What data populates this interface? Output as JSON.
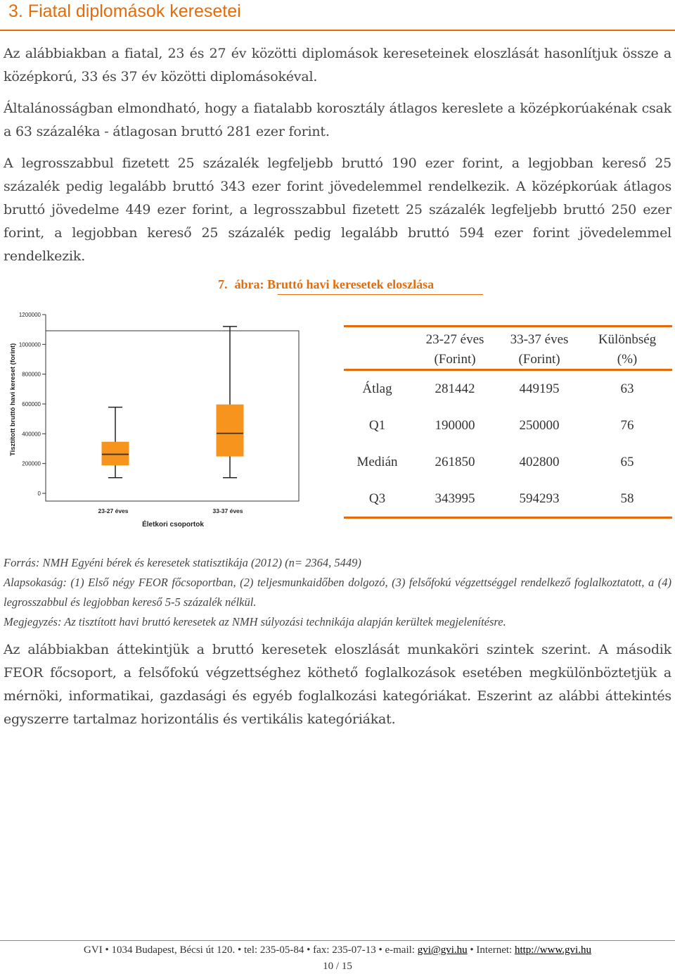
{
  "heading": "3. Fiatal diplomások keresetei",
  "paragraphs": {
    "p1": "Az alábbiakban a fiatal, 23 és 27 év közötti diplomások kereseteinek eloszlását hasonlítjuk össze a középkorú, 33 és 37 év közötti diplomásokéval.",
    "p2": "Általánosságban elmondható, hogy a fiatalabb korosztály átlagos kereslete a középkorúakénak csak a 63 százaléka - átlagosan bruttó 281 ezer forint.",
    "p3": "A legrosszabbul fizetett 25 százalék legfeljebb bruttó 190 ezer forint, a legjobban kereső 25 százalék pedig legalább bruttó 343 ezer forint jövedelemmel rendelkezik. A középkorúak átlagos bruttó jövedelme 449 ezer forint, a legrosszabbul fizetett 25 százalék legfeljebb bruttó 250 ezer forint, a legjobban kereső 25 százalék pedig legalább bruttó 594 ezer forint jövedelemmel rendelkezik.",
    "p4": "Az alábbiakban áttekintjük a bruttó keresetek eloszlását munkaköri szintek szerint. A második FEOR főcsoport, a felsőfokú végzettséghez köthető foglalkozások esetében megkülönböztetjük a mérnöki, informatikai, gazdasági és egyéb foglalkozási kategóriákat. Eszerint az alábbi áttekintés egyszerre tartalmaz horizontális és vertikális kategóriákat."
  },
  "figure": {
    "number": "7.",
    "title": "ábra: Bruttó havi keresetek eloszlása"
  },
  "chart_data": {
    "type": "box",
    "ylabel": "Tisztított bruttó havi kereset (forint)",
    "xlabel": "Életkori csoportok",
    "ylim": [
      0,
      1200000
    ],
    "yticks": [
      "0",
      "200000",
      "400000",
      "600000",
      "800000",
      "1000000",
      "1200000"
    ],
    "ytick_values": [
      0,
      200000,
      400000,
      600000,
      800000,
      1000000,
      1200000
    ],
    "categories": [
      "23-27 éves",
      "33-37 éves"
    ],
    "boxes": [
      {
        "category": "23-27 éves",
        "whisker_low": 105000,
        "q1": 190000,
        "median": 261850,
        "q3": 343995,
        "whisker_high": 578000
      },
      {
        "category": "33-37 éves",
        "whisker_low": 105000,
        "q1": 250000,
        "median": 402800,
        "q3": 594293,
        "whisker_high": 1120000
      }
    ],
    "box_color": "#f7941d",
    "median_color": "#333333"
  },
  "table": {
    "headers": [
      {
        "line1": "",
        "line2": ""
      },
      {
        "line1": "23-27 éves",
        "line2": "(Forint)"
      },
      {
        "line1": "33-37 éves",
        "line2": "(Forint)"
      },
      {
        "line1": "Különbség",
        "line2": "(%)"
      }
    ],
    "rows": [
      [
        "Átlag",
        "281442",
        "449195",
        "63"
      ],
      [
        "Q1",
        "190000",
        "250000",
        "76"
      ],
      [
        "Medián",
        "261850",
        "402800",
        "65"
      ],
      [
        "Q3",
        "343995",
        "594293",
        "58"
      ]
    ]
  },
  "source": {
    "forras": "Forrás: NMH Egyéni bérek és keresetek statisztikája (2012) (n= 2364, 5449)",
    "alapsokasag": "Alapsokaság: (1) Első négy FEOR főcsoportban, (2) teljesmunkaidőben dolgozó, (3) felsőfokú végzettséggel rendelkező foglalkoztatott, a (4) legrosszabbul és legjobban kereső 5-5 százalék nélkül.",
    "megjegyzes": "Megjegyzés: Az tisztított havi bruttó keresetek az NMH súlyozási technikája alapján kerültek megjelenítésre."
  },
  "footer": {
    "org": "GVI • 1034 Budapest, Bécsi út 120. • tel: 235-05-84 • fax: 235-07-13 • e-mail: ",
    "email": "gvi@gvi.hu",
    "internet_label": " • Internet: ",
    "url": "http://www.gvi.hu",
    "page": "10 / 15"
  },
  "colors": {
    "accent": "#e46c0a",
    "box": "#f7941d"
  }
}
